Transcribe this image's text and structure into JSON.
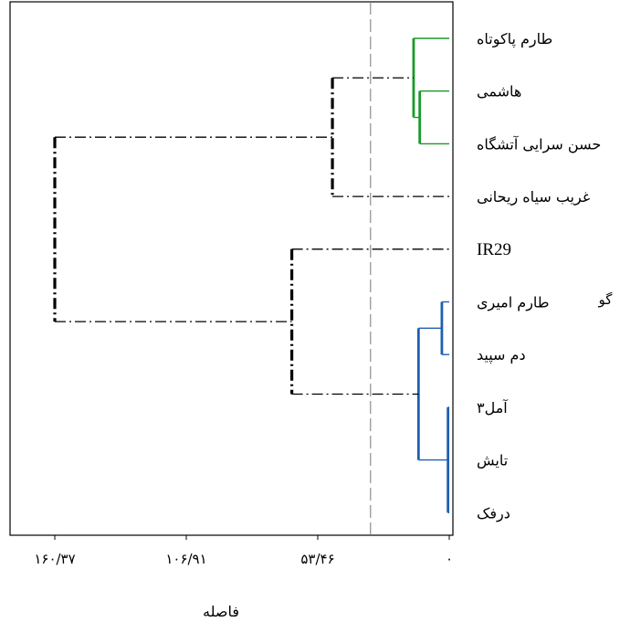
{
  "chart_data": {
    "type": "dendrogram",
    "xlabel": "فاصله",
    "xticks": [
      {
        "value": 160.37,
        "label": "۱۶۰/۳۷"
      },
      {
        "value": 106.91,
        "label": "۱۰۶/۹۱"
      },
      {
        "value": 53.46,
        "label": "۵۳/۴۶"
      },
      {
        "value": 0,
        "label": "۰"
      }
    ],
    "xlim": [
      178,
      0
    ],
    "cut_distance": 32,
    "side_mark": "گو",
    "leaves": [
      {
        "id": "L1",
        "label": "طارم پاکوتاه",
        "color": "#1a9a2a"
      },
      {
        "id": "L2",
        "label": "هاشمی",
        "color": "#1a9a2a"
      },
      {
        "id": "L3",
        "label": "حسن سرایی آتشگاه",
        "color": "#1a9a2a"
      },
      {
        "id": "L4",
        "label": "غریب سیاه ریحانی",
        "color": "#8b2a20"
      },
      {
        "id": "L5",
        "label": "IR29",
        "color": "#9a40c8"
      },
      {
        "id": "L6",
        "label": "طارم امیری",
        "color": "#1f5fb0"
      },
      {
        "id": "L7",
        "label": "دم سپید",
        "color": "#1f5fb0"
      },
      {
        "id": "L8",
        "label": "آمل۳",
        "color": "#1f5fb0"
      },
      {
        "id": "L9",
        "label": "تایش",
        "color": "#1f5fb0"
      },
      {
        "id": "L10",
        "label": "درفک",
        "color": "#1f5fb0"
      }
    ],
    "merges": [
      {
        "id": "M1",
        "children": [
          "L2",
          "L3"
        ],
        "height": 12,
        "color": "#1a9a2a"
      },
      {
        "id": "M2",
        "children": [
          "L1",
          "M1"
        ],
        "height": 14.5,
        "color": "#1a9a2a"
      },
      {
        "id": "M3",
        "children": [
          "M2",
          "L4"
        ],
        "height": 47.5,
        "color": "#000000"
      },
      {
        "id": "M4",
        "children": [
          "L6",
          "L7"
        ],
        "height": 3,
        "color": "#1f5fb0"
      },
      {
        "id": "M5",
        "children": [
          "L8",
          "L9",
          "L10"
        ],
        "height": 0.5,
        "color": "#1f5fb0"
      },
      {
        "id": "M6",
        "children": [
          "M4",
          "M5"
        ],
        "height": 12.5,
        "color": "#1f5fb0"
      },
      {
        "id": "M7",
        "children": [
          "L5",
          "M6"
        ],
        "height": 64,
        "color": "#000000"
      },
      {
        "id": "M8",
        "children": [
          "M3",
          "M7"
        ],
        "height": 160.37,
        "color": "#000000"
      }
    ]
  }
}
